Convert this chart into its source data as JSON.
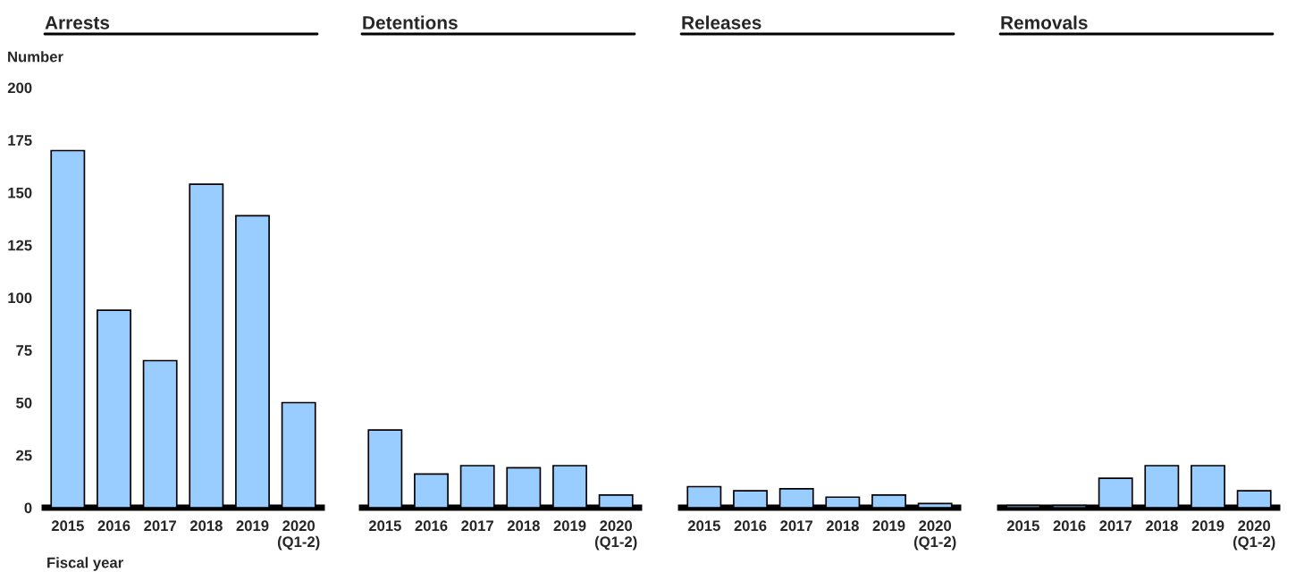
{
  "chart_data": [
    {
      "type": "bar",
      "title": "Arrests",
      "ylabel": "Number",
      "xlabel": "Fiscal year",
      "categories": [
        "2015",
        "2016",
        "2017",
        "2018",
        "2019",
        "2020\n(Q1-2)"
      ],
      "values": [
        170,
        94,
        70,
        154,
        139,
        50
      ],
      "color": "#99ccff",
      "ylim": [
        0,
        200
      ],
      "yticks": [
        0,
        25,
        50,
        75,
        100,
        125,
        150,
        175,
        200
      ],
      "grid": false
    },
    {
      "type": "bar",
      "title": "Detentions",
      "categories": [
        "2015",
        "2016",
        "2017",
        "2018",
        "2019",
        "2020\n(Q1-2)"
      ],
      "values": [
        37,
        16,
        20,
        19,
        20,
        6
      ],
      "color": "#99ccff",
      "ylim": [
        0,
        200
      ],
      "tick_labels": "x",
      "grid": false
    },
    {
      "type": "bar",
      "title": "Releases",
      "categories": [
        "2015",
        "2016",
        "2017",
        "2018",
        "2019",
        "2020\n(Q1-2)"
      ],
      "values": [
        10,
        8,
        9,
        5,
        6,
        2
      ],
      "color": "#99ccff",
      "ylim": [
        0,
        200
      ],
      "tick_labels": "x",
      "grid": false
    },
    {
      "type": "bar",
      "title": "Removals",
      "categories": [
        "2015",
        "2016",
        "2017",
        "2018",
        "2019",
        "2020\n(Q1-2)"
      ],
      "values": [
        1,
        1,
        14,
        20,
        20,
        8
      ],
      "color": "#99ccff",
      "ylim": [
        0,
        200
      ],
      "tick_labels": "x",
      "grid": false
    }
  ]
}
